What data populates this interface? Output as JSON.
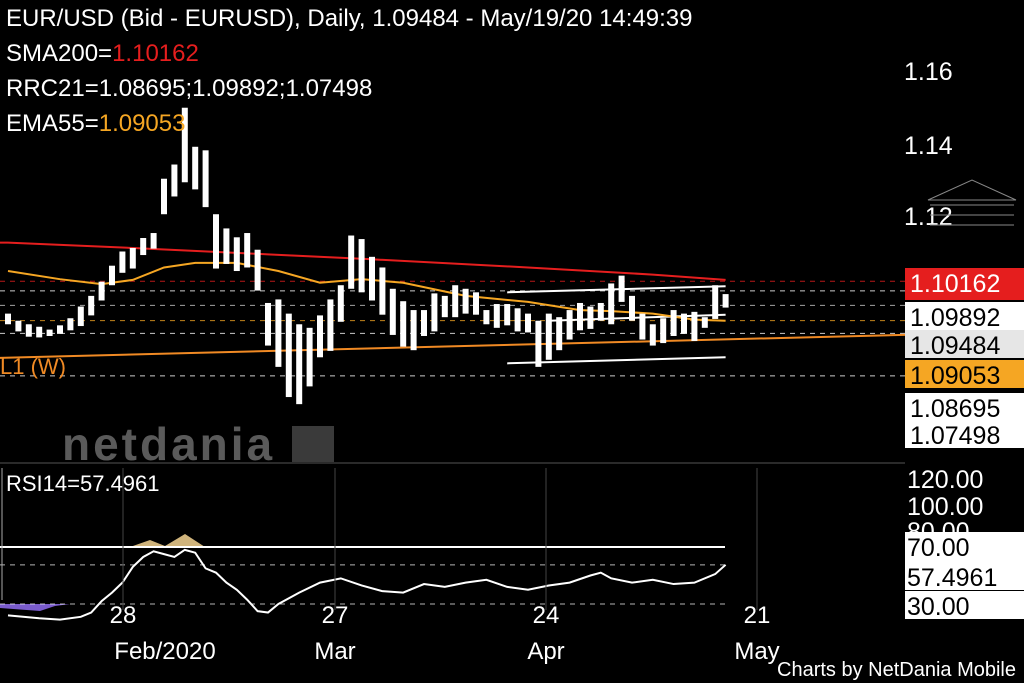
{
  "header": {
    "title": "EUR/USD (Bid - EURUSD),  Daily, 1.09484 - May/19/20 14:49:39",
    "sma_label": "SMA200=",
    "sma_value": "1.10162",
    "rrc_label": "RRC21=1.08695;1.09892;1.07498",
    "ema_label": "EMA55=",
    "ema_value": "1.09053"
  },
  "colors": {
    "background": "#000000",
    "bars": "#ffffff",
    "sma": "#e51e1e",
    "ema": "#f5a623",
    "support": "#f08a24",
    "rsi_line": "#ffffff",
    "rsi_oversold": "#7a5ccc",
    "rsi_overbought": "#e7c88a",
    "price_badge_bg": "#ffffff",
    "sma_badge_bg": "#e51e1e",
    "ema_badge_bg": "#f5a623"
  },
  "price_axis": {
    "ticks": [
      "1.16",
      "1.14",
      "1.12"
    ],
    "badges": [
      {
        "label": "1.10162",
        "style": "sma"
      },
      {
        "label": "1.09892",
        "style": "plain"
      },
      {
        "label": "1.09484",
        "style": "current"
      },
      {
        "label": "1.09053",
        "style": "ema"
      },
      {
        "label": "1.08695",
        "style": "plain"
      },
      {
        "label": "1.07498",
        "style": "plain"
      }
    ]
  },
  "support_line_label": "L1 (W)",
  "watermark": "netdania",
  "rsi": {
    "label": "RSI14=57.4961",
    "value": "57.4961",
    "ticks": [
      "120.00",
      "100.00",
      "80.00",
      "70.00",
      "30.00"
    ]
  },
  "time_axis": {
    "days": [
      "28",
      "27",
      "24",
      "21"
    ],
    "months": [
      "Feb/2020",
      "Mar",
      "Apr",
      "May"
    ]
  },
  "footer": "Charts by NetDania Mobile",
  "chart_data": {
    "type": "ohlc",
    "instrument": "EUR/USD",
    "timeframe": "Daily",
    "last_price": 1.09484,
    "indicators": {
      "SMA200": 1.10162,
      "EMA55": 1.09053,
      "RRC21": [
        1.08695,
        1.09892,
        1.07498
      ],
      "RSI14": 57.4961
    },
    "price_range": [
      1.065,
      1.17
    ],
    "rsi_range": [
      0,
      120
    ],
    "rsi_levels": [
      70,
      30
    ],
    "bars": [
      [
        1.0925,
        1.0895
      ],
      [
        1.0905,
        1.0875
      ],
      [
        1.0895,
        1.086
      ],
      [
        1.0888,
        1.0858
      ],
      [
        1.088,
        1.0862
      ],
      [
        1.0892,
        1.0868
      ],
      [
        1.0912,
        1.0878
      ],
      [
        1.0945,
        1.089
      ],
      [
        1.0975,
        1.092
      ],
      [
        1.1015,
        1.0962
      ],
      [
        1.106,
        1.1005
      ],
      [
        1.11,
        1.104
      ],
      [
        1.111,
        1.1052
      ],
      [
        1.1138,
        1.109
      ],
      [
        1.1152,
        1.1108
      ],
      [
        1.1305,
        1.1205
      ],
      [
        1.1345,
        1.1255
      ],
      [
        1.1505,
        1.1295
      ],
      [
        1.1395,
        1.1275
      ],
      [
        1.1385,
        1.1225
      ],
      [
        1.1205,
        1.1052
      ],
      [
        1.1165,
        1.1065
      ],
      [
        1.114,
        1.1045
      ],
      [
        1.1152,
        1.1055
      ],
      [
        1.1105,
        1.099
      ],
      [
        1.0955,
        1.0835
      ],
      [
        1.0965,
        1.0775
      ],
      [
        1.0925,
        1.069
      ],
      [
        1.0895,
        1.067
      ],
      [
        1.0885,
        1.072
      ],
      [
        1.092,
        1.0802
      ],
      [
        1.0965,
        1.082
      ],
      [
        1.1005,
        1.0902
      ],
      [
        1.1145,
        1.0995
      ],
      [
        1.1135,
        1.0985
      ],
      [
        1.1085,
        1.0962
      ],
      [
        1.1055,
        1.0922
      ],
      [
        1.0995,
        1.0865
      ],
      [
        1.096,
        1.0832
      ],
      [
        1.0935,
        1.0822
      ],
      [
        1.0935,
        1.0862
      ],
      [
        1.0982,
        1.0875
      ],
      [
        1.0975,
        1.0915
      ],
      [
        1.1005,
        1.0915
      ],
      [
        1.0995,
        1.0925
      ],
      [
        1.0985,
        1.0922
      ],
      [
        1.0935,
        1.0895
      ],
      [
        1.0952,
        1.0885
      ],
      [
        1.0952,
        1.0892
      ],
      [
        1.094,
        1.0875
      ],
      [
        1.0925,
        1.0872
      ],
      [
        1.0905,
        1.0775
      ],
      [
        1.0925,
        1.0795
      ],
      [
        1.0915,
        1.0822
      ],
      [
        1.0935,
        1.0852
      ],
      [
        1.0955,
        1.0878
      ],
      [
        1.0945,
        1.0882
      ],
      [
        1.0955,
        1.0905
      ],
      [
        1.101,
        1.0895
      ],
      [
        1.1032,
        1.0958
      ],
      [
        1.0975,
        1.0905
      ],
      [
        1.0925,
        1.0852
      ],
      [
        1.0895,
        1.0835
      ],
      [
        1.0912,
        1.0842
      ],
      [
        1.0935,
        1.0862
      ],
      [
        1.0925,
        1.0868
      ],
      [
        1.093,
        1.0848
      ],
      [
        1.0915,
        1.0885
      ],
      [
        1.1005,
        1.091
      ],
      [
        1.098,
        1.0942
      ]
    ],
    "sma200": [
      [
        0,
        1.1125
      ],
      [
        12,
        1.111
      ],
      [
        25,
        1.1092
      ],
      [
        35,
        1.1078
      ],
      [
        50,
        1.1055
      ],
      [
        62,
        1.1035
      ],
      [
        69,
        1.102
      ]
    ],
    "ema55": [
      [
        0,
        1.1045
      ],
      [
        5,
        1.1022
      ],
      [
        9,
        1.1008
      ],
      [
        12,
        1.102
      ],
      [
        15,
        1.1055
      ],
      [
        18,
        1.1068
      ],
      [
        22,
        1.1068
      ],
      [
        26,
        1.1045
      ],
      [
        30,
        1.1012
      ],
      [
        34,
        1.1022
      ],
      [
        38,
        1.1012
      ],
      [
        44,
        1.0975
      ],
      [
        50,
        1.0958
      ],
      [
        55,
        1.0935
      ],
      [
        58,
        1.0932
      ],
      [
        62,
        1.0925
      ],
      [
        66,
        1.0908
      ],
      [
        69,
        1.0905
      ]
    ],
    "support_line_L1W": [
      [
        -8,
        1.0795
      ],
      [
        80,
        1.0875
      ]
    ],
    "regression_channel": {
      "upper": [
        [
          48,
          1.0985
        ],
        [
          69,
          1.1002
        ]
      ],
      "mid": [
        [
          52,
          1.0905
        ],
        [
          69,
          1.0922
        ]
      ],
      "lower": [
        [
          48,
          1.0785
        ],
        [
          69,
          1.0802
        ]
      ]
    },
    "rsi_series": [
      [
        0,
        22
      ],
      [
        3,
        20
      ],
      [
        5,
        19
      ],
      [
        7,
        21
      ],
      [
        8,
        24
      ],
      [
        9,
        32
      ],
      [
        10,
        38
      ],
      [
        11,
        45
      ],
      [
        12,
        56
      ],
      [
        13,
        63
      ],
      [
        14,
        67
      ],
      [
        15,
        65
      ],
      [
        16,
        63
      ],
      [
        17,
        68
      ],
      [
        18,
        66
      ],
      [
        19,
        55
      ],
      [
        20,
        52
      ],
      [
        21,
        45
      ],
      [
        22,
        40
      ],
      [
        23,
        33
      ],
      [
        24,
        25
      ],
      [
        25,
        24
      ],
      [
        26,
        30
      ],
      [
        28,
        38
      ],
      [
        30,
        45
      ],
      [
        32,
        48
      ],
      [
        34,
        43
      ],
      [
        36,
        39
      ],
      [
        38,
        38
      ],
      [
        40,
        44
      ],
      [
        42,
        42
      ],
      [
        44,
        45
      ],
      [
        46,
        47
      ],
      [
        48,
        42
      ],
      [
        50,
        40
      ],
      [
        52,
        43
      ],
      [
        54,
        45
      ],
      [
        56,
        50
      ],
      [
        57,
        52
      ],
      [
        58,
        48
      ],
      [
        60,
        45
      ],
      [
        62,
        47
      ],
      [
        64,
        44
      ],
      [
        66,
        45
      ],
      [
        68,
        51
      ],
      [
        69,
        57.5
      ]
    ]
  }
}
